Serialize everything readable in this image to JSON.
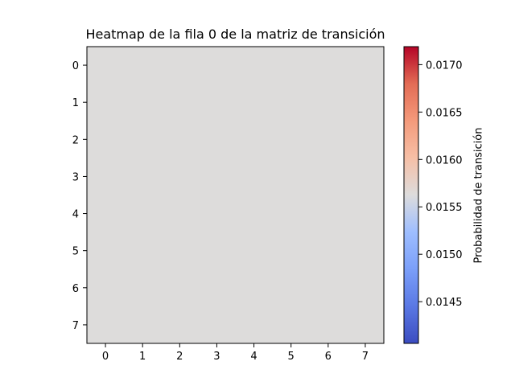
{
  "chart_data": {
    "type": "heatmap",
    "title": "Heatmap de la fila 0 de la matriz de transición",
    "x_ticks": [
      "0",
      "1",
      "2",
      "3",
      "4",
      "5",
      "6",
      "7"
    ],
    "y_ticks": [
      "0",
      "1",
      "2",
      "3",
      "4",
      "5",
      "6",
      "7"
    ],
    "values": [
      [
        0.015625,
        0.015625,
        0.015625,
        0.015625,
        0.015625,
        0.015625,
        0.015625,
        0.015625
      ],
      [
        0.015625,
        0.015625,
        0.015625,
        0.015625,
        0.015625,
        0.015625,
        0.015625,
        0.015625
      ],
      [
        0.015625,
        0.015625,
        0.015625,
        0.015625,
        0.015625,
        0.015625,
        0.015625,
        0.015625
      ],
      [
        0.015625,
        0.015625,
        0.015625,
        0.015625,
        0.015625,
        0.015625,
        0.015625,
        0.015625
      ],
      [
        0.015625,
        0.015625,
        0.015625,
        0.015625,
        0.015625,
        0.015625,
        0.015625,
        0.015625
      ],
      [
        0.015625,
        0.015625,
        0.015625,
        0.015625,
        0.015625,
        0.015625,
        0.015625,
        0.015625
      ],
      [
        0.015625,
        0.015625,
        0.015625,
        0.015625,
        0.015625,
        0.015625,
        0.015625,
        0.015625
      ],
      [
        0.015625,
        0.015625,
        0.015625,
        0.015625,
        0.015625,
        0.015625,
        0.015625,
        0.015625
      ]
    ],
    "colormap": "coolwarm",
    "colorbar": {
      "label": "Probabilidad de transición",
      "range": [
        0.01406,
        0.01719
      ],
      "ticks": [
        "0.0145",
        "0.0150",
        "0.0155",
        "0.0160",
        "0.0165",
        "0.0170"
      ],
      "tick_values": [
        0.0145,
        0.015,
        0.0155,
        0.016,
        0.0165,
        0.017
      ]
    },
    "grid": false,
    "cell_color": "#dddcdb"
  }
}
